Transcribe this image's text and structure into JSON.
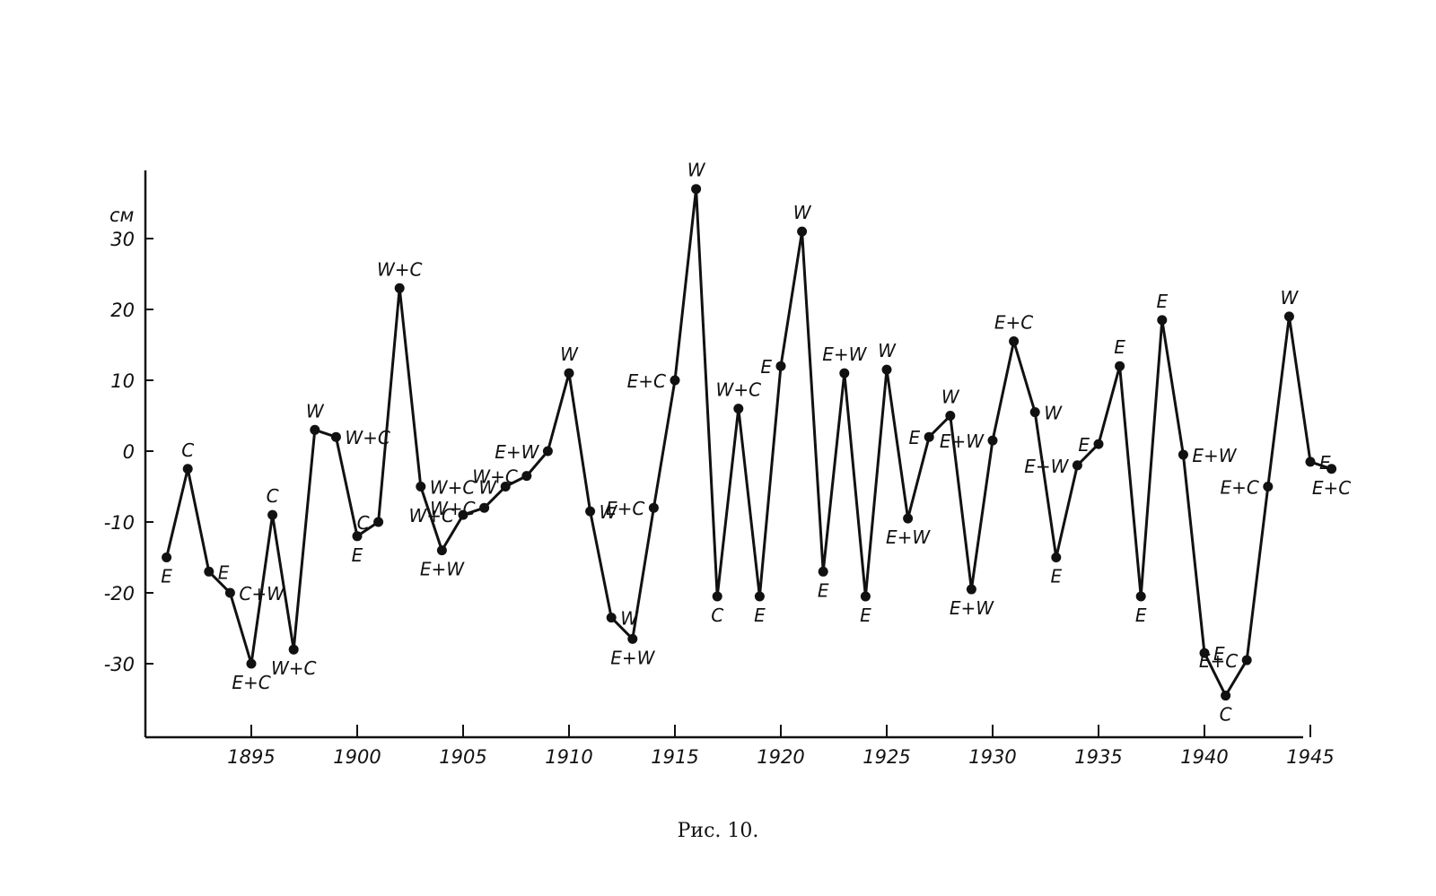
{
  "chart_data": {
    "type": "line",
    "title": "",
    "xlabel": "",
    "ylabel": "см",
    "caption": "Рис. 10.",
    "xlim": [
      1890,
      1946.5
    ],
    "ylim": [
      -40,
      40
    ],
    "grid": false,
    "x_ticks": [
      1895,
      1900,
      1905,
      1910,
      1915,
      1920,
      1925,
      1930,
      1935,
      1940,
      1945
    ],
    "x_tick_labels": [
      "1895",
      "1900",
      "1905",
      "1910",
      "1915",
      "1920",
      "1925",
      "1930",
      "1935",
      "1940",
      "1945"
    ],
    "y_ticks": [
      30,
      20,
      10,
      0,
      -10,
      -20,
      -30
    ],
    "y_tick_labels": [
      "30",
      "20",
      "10",
      "0",
      "-10",
      "-20",
      "-30"
    ],
    "series": [
      {
        "color": "#111111",
        "points": [
          {
            "x": 1891,
            "y": -15,
            "label": "E"
          },
          {
            "x": 1892,
            "y": -2.5,
            "label": "C"
          },
          {
            "x": 1893,
            "y": -17,
            "label": "E"
          },
          {
            "x": 1894,
            "y": -20,
            "label": "C+W"
          },
          {
            "x": 1895,
            "y": -30,
            "label": "E+C"
          },
          {
            "x": 1896,
            "y": -9,
            "label": "C"
          },
          {
            "x": 1897,
            "y": -28,
            "label": "W+C"
          },
          {
            "x": 1898,
            "y": 3,
            "label": "W"
          },
          {
            "x": 1899,
            "y": 2,
            "label": "W+C"
          },
          {
            "x": 1900,
            "y": -12,
            "label": "E"
          },
          {
            "x": 1901,
            "y": -10,
            "label": "C"
          },
          {
            "x": 1902,
            "y": 23,
            "label": "W+C"
          },
          {
            "x": 1903,
            "y": -5,
            "label": "W+C"
          },
          {
            "x": 1904,
            "y": -14,
            "label": "E+W"
          },
          {
            "x": 1905,
            "y": -9,
            "label": "W+C"
          },
          {
            "x": 1906,
            "y": -8,
            "label": "W+C"
          },
          {
            "x": 1907,
            "y": -5,
            "label": "W"
          },
          {
            "x": 1908,
            "y": -3.5,
            "label": "W+C"
          },
          {
            "x": 1909,
            "y": 0,
            "label": "E+W"
          },
          {
            "x": 1910,
            "y": 11,
            "label": "W"
          },
          {
            "x": 1911,
            "y": -8.5,
            "label": "W"
          },
          {
            "x": 1912,
            "y": -23.5,
            "label": "W"
          },
          {
            "x": 1913,
            "y": -26.5,
            "label": "E+W"
          },
          {
            "x": 1914,
            "y": -8,
            "label": "E+C"
          },
          {
            "x": 1915,
            "y": 10,
            "label": "E+C"
          },
          {
            "x": 1916,
            "y": 37,
            "label": "W"
          },
          {
            "x": 1917,
            "y": -20.5,
            "label": "C"
          },
          {
            "x": 1918,
            "y": 6,
            "label": "W+C"
          },
          {
            "x": 1919,
            "y": -20.5,
            "label": "E"
          },
          {
            "x": 1920,
            "y": 12,
            "label": "E"
          },
          {
            "x": 1921,
            "y": 31,
            "label": "W"
          },
          {
            "x": 1922,
            "y": -17,
            "label": "E"
          },
          {
            "x": 1923,
            "y": 11,
            "label": "E+W"
          },
          {
            "x": 1924,
            "y": -20.5,
            "label": "E"
          },
          {
            "x": 1925,
            "y": 11.5,
            "label": "W"
          },
          {
            "x": 1926,
            "y": -9.5,
            "label": "E+W"
          },
          {
            "x": 1927,
            "y": 2,
            "label": "E"
          },
          {
            "x": 1928,
            "y": 5,
            "label": "W"
          },
          {
            "x": 1929,
            "y": -19.5,
            "label": "E+W"
          },
          {
            "x": 1930,
            "y": 1.5,
            "label": "E+W"
          },
          {
            "x": 1931,
            "y": 15.5,
            "label": "E+C"
          },
          {
            "x": 1932,
            "y": 5.5,
            "label": "W"
          },
          {
            "x": 1933,
            "y": -15,
            "label": "E"
          },
          {
            "x": 1934,
            "y": -2,
            "label": "E+W"
          },
          {
            "x": 1935,
            "y": 1,
            "label": "E"
          },
          {
            "x": 1936,
            "y": 12,
            "label": "E"
          },
          {
            "x": 1937,
            "y": -20.5,
            "label": "E"
          },
          {
            "x": 1938,
            "y": 18.5,
            "label": "E"
          },
          {
            "x": 1939,
            "y": -0.5,
            "label": "E+W"
          },
          {
            "x": 1940,
            "y": -28.5,
            "label": "E"
          },
          {
            "x": 1941,
            "y": -34.5,
            "label": "C"
          },
          {
            "x": 1942,
            "y": -29.5,
            "label": "E+C"
          },
          {
            "x": 1943,
            "y": -5,
            "label": "E+C"
          },
          {
            "x": 1944,
            "y": 19,
            "label": "W"
          },
          {
            "x": 1945,
            "y": -1.5,
            "label": "E"
          },
          {
            "x": 1946,
            "y": -2.5,
            "label": "E+C"
          }
        ]
      }
    ]
  }
}
